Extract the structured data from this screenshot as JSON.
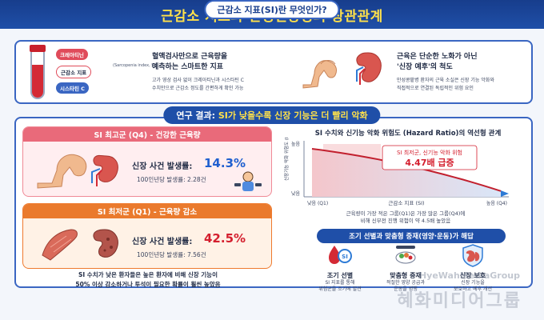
{
  "header": {
    "title": "근감소 지표와 만성신장병의 상관관계"
  },
  "section1": {
    "title": "근감소 지표(SI)란 무엇인가?",
    "chips": {
      "creatinine": "크레아티닌",
      "muscle": "근감소 지표",
      "muscle_note": "(Sarcopenia index, SI)",
      "cystatin": "시스타틴 C"
    },
    "col1": {
      "head_line1": "혈액검사만으로 근육량을",
      "head_line2": "예측하는 스마트한 지표",
      "body_line1": "고가 영상 검사 없이 크레아티닌과 시스타틴 C",
      "body_line2": "수치만으로 근감소 정도를 간편하게 확인 가능"
    },
    "col2": {
      "head_line1": "근육은 단순한 노화가 아닌",
      "head_line2": "'신장 예후'의 척도",
      "body_line1": "만성콩팥병 환자의 근육 소실은 신장 기능 악화와",
      "body_line2": "직접적으로 연결된 독립적인 위험 요인"
    }
  },
  "section2": {
    "title_prefix": "연구 결과: ",
    "title_highlight": "SI가 낮을수록 신장 기능은 더 빨리 악화"
  },
  "card_high": {
    "header": "SI 최고군 (Q4) - 건강한 근육량",
    "stat_label": "신장 사건 발생률:",
    "stat_value": "14.3%",
    "sub": "100인년당 발생률: 2.28건"
  },
  "card_low": {
    "header": "SI 최저군 (Q1) - 근육량 감소",
    "stat_label": "신장 사건 발생률:",
    "stat_value": "42.5%",
    "sub": "100인년당 발생률: 7.56건"
  },
  "finding": {
    "line1": "SI 수치가 낮은 환자들은 높은 환자에 비해 신장 기능이",
    "line2": "50% 이상 감소하거나 투석이 필요한 확률이 훨씬 높았음"
  },
  "chart_data": {
    "type": "area",
    "title": "SI 수치와 신기능 악화 위험도 (Hazard Ratio)의 역선형 관계",
    "ylabel": "신장기능 악화 위험도 (Hazard Ratio)",
    "y_top_label": "높음",
    "y_bottom_label": "낮음",
    "xlabel": "근감소 지표 (SI)",
    "x_left_label": "낮음 (Q1)",
    "x_right_label": "높음 (Q4)",
    "callout_line1": "SI 최저군, 신기능 악화 위험",
    "callout_line2": "4.47배 급증",
    "line": {
      "from": "Q1",
      "to": "Q4",
      "direction": "decreasing"
    },
    "accent_color": "#d41f2e"
  },
  "chart_desc": {
    "line1": "근육량이 가장 적은 그룹(Q1)은 가장 많은 그룹(Q4)에",
    "line2": "비해 신부전 진행 위험이 약 4.5배 높았음"
  },
  "strategy": {
    "title": "조기 선별과 맞춤형 중재(영양·운동)가 해답",
    "items": [
      {
        "title": "조기 선별",
        "desc1": "SI 지표를 통해",
        "desc2": "위험군을 조기에 발견"
      },
      {
        "title": "맞춤형 중재",
        "desc1": "적절한 영양 공급과",
        "desc2": "운동을 병행"
      },
      {
        "title": "신장 보호",
        "desc1": "신장 기능을",
        "desc2": "보호하고 예후 개선"
      }
    ],
    "icon_badge": "SI"
  },
  "watermark": {
    "en": "HyeWahMediaGroup",
    "ko": "혜화미디어그룹"
  },
  "colors": {
    "primary": "#1f4fa8",
    "accent_yellow": "#ffe14a",
    "pink": "#e96a7a",
    "orange": "#ea7a2d",
    "red": "#d41f2e",
    "blue": "#1f5fcf"
  }
}
